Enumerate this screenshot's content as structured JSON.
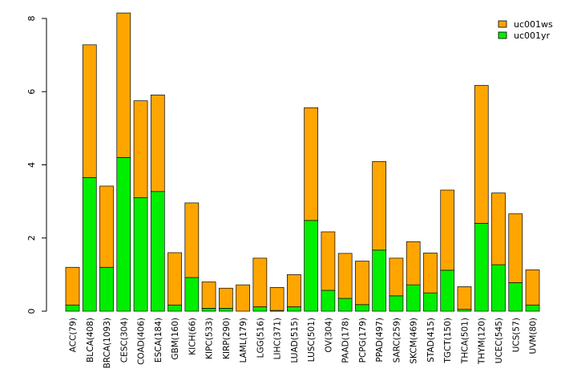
{
  "chart_data": {
    "type": "bar",
    "stacked": true,
    "categories": [
      "ACC(79)",
      "BLCA(408)",
      "BRCA(1093)",
      "CESC(304)",
      "COAD(406)",
      "ESCA(184)",
      "GBM(160)",
      "KICH(66)",
      "KIPC(533)",
      "KIRP(290)",
      "LAML(179)",
      "LGG(516)",
      "LIHC(371)",
      "LUAD(515)",
      "LUSC(501)",
      "OV(304)",
      "PAAD(178)",
      "PCPG(179)",
      "PPAD(497)",
      "SARC(259)",
      "SKCM(469)",
      "STAD(415)",
      "TGCT(150)",
      "THCA(501)",
      "THYM(120)",
      "UCEC(545)",
      "UCS(57)",
      "UVM(80)"
    ],
    "series": [
      {
        "name": "uc001yr",
        "color": "#00ee00",
        "values": [
          0.17,
          3.65,
          1.2,
          4.2,
          3.1,
          3.27,
          0.17,
          0.92,
          0.08,
          0.08,
          0.0,
          0.12,
          0.02,
          0.12,
          2.48,
          0.57,
          0.35,
          0.18,
          1.67,
          0.42,
          0.72,
          0.5,
          1.12,
          0.05,
          2.4,
          1.27,
          0.78,
          0.17
        ]
      },
      {
        "name": "uc001ws",
        "color": "#ffa500",
        "values": [
          1.03,
          3.63,
          2.22,
          3.95,
          2.65,
          2.64,
          1.43,
          2.04,
          0.72,
          0.55,
          0.72,
          1.33,
          0.63,
          0.88,
          3.08,
          1.6,
          1.23,
          1.19,
          2.42,
          1.03,
          1.18,
          1.09,
          2.19,
          0.62,
          3.77,
          1.96,
          1.88,
          0.96
        ]
      }
    ],
    "legend": {
      "position": "top-right",
      "entries": [
        "uc001ws",
        "uc001yr"
      ]
    },
    "yticks": [
      "0",
      "2",
      "4",
      "6",
      "8"
    ],
    "ylim": [
      0,
      8
    ],
    "title": "",
    "xlabel": "",
    "ylabel": ""
  }
}
